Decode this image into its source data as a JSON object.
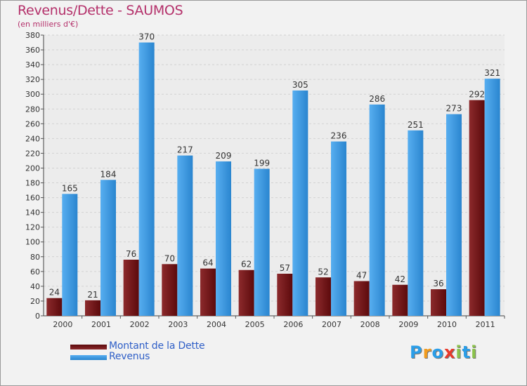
{
  "chart_data": {
    "type": "bar",
    "title": "Revenus/Dette - SAUMOS",
    "subtitle": "(en milliers d'€)",
    "categories": [
      "2000",
      "2001",
      "2002",
      "2003",
      "2004",
      "2005",
      "2006",
      "2007",
      "2008",
      "2009",
      "2010",
      "2011"
    ],
    "series": [
      {
        "name": "Montant de la Dette",
        "color": "#7a1416",
        "values": [
          24,
          21,
          76,
          70,
          64,
          62,
          57,
          52,
          47,
          42,
          36,
          292
        ]
      },
      {
        "name": "Revenus",
        "color": "#3d9be3",
        "values": [
          165,
          184,
          370,
          217,
          209,
          199,
          305,
          236,
          286,
          251,
          273,
          321
        ]
      }
    ],
    "ylim": [
      0,
      380
    ],
    "ytick_step": 20,
    "grid": true,
    "legend_position": "bottom-left"
  },
  "brand": {
    "letters": [
      "P",
      "r",
      "o",
      "x",
      "i",
      "t",
      "i"
    ],
    "colors": [
      "#2b9ee8",
      "#f29c1f",
      "#2b9ee8",
      "#e8392b",
      "#8bc34a",
      "#2b9ee8",
      "#8bc34a"
    ]
  }
}
